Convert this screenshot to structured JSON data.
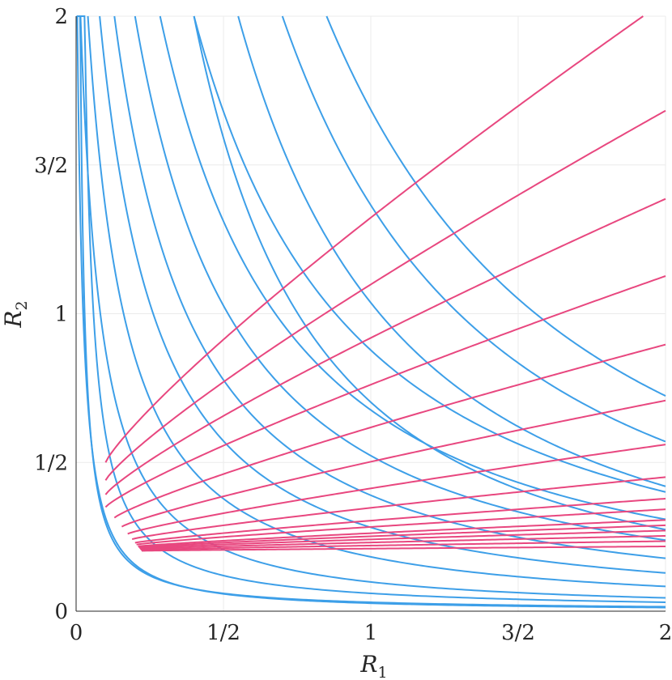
{
  "chart_data": {
    "type": "line",
    "title": "",
    "xlabel": {
      "base": "R",
      "sub": "1"
    },
    "ylabel": {
      "base": "R",
      "sub": "2"
    },
    "xlim": [
      0,
      2
    ],
    "ylim": [
      0,
      2
    ],
    "grid": true,
    "xticks": [
      {
        "value": 0,
        "label": "0"
      },
      {
        "value": 0.5,
        "label": "1/2"
      },
      {
        "value": 1,
        "label": "1"
      },
      {
        "value": 1.5,
        "label": "3/2"
      },
      {
        "value": 2,
        "label": "2"
      }
    ],
    "yticks": [
      {
        "value": 0,
        "label": "0"
      },
      {
        "value": 0.5,
        "label": "1/2"
      },
      {
        "value": 1,
        "label": "1"
      },
      {
        "value": 1.5,
        "label": "3/2"
      },
      {
        "value": 2,
        "label": "2"
      }
    ],
    "colors": {
      "blue_family": "#3d9fe8",
      "pink_family": "#e8477f"
    },
    "blue_family": {
      "x_range": [
        0,
        2
      ],
      "x_at_y2": [
        0.004,
        0.015,
        0.04,
        0.08,
        0.13,
        0.2,
        0.285,
        0.4
      ],
      "series": [
        {
          "x": [
            0.0,
            0.05,
            0.1,
            0.15,
            0.2,
            0.3,
            0.4,
            0.5,
            0.6,
            0.8,
            1.0,
            1.25,
            1.5,
            1.75,
            2.0
          ],
          "y": [
            2.0,
            0.75,
            0.54,
            0.49,
            0.46,
            0.41,
            0.37,
            0.34,
            0.31,
            0.26,
            0.22,
            0.18,
            0.15,
            0.12,
            0.1
          ]
        },
        {
          "x": [
            0.0,
            0.05,
            0.1,
            0.15,
            0.2,
            0.3,
            0.4,
            0.5,
            0.6,
            0.8,
            1.0,
            1.25,
            1.5,
            1.75,
            2.0
          ],
          "y": [
            1.5,
            0.93,
            0.66,
            0.58,
            0.54,
            0.48,
            0.44,
            0.4,
            0.37,
            0.31,
            0.26,
            0.21,
            0.17,
            0.13,
            0.1
          ]
        }
      ]
    }
  }
}
